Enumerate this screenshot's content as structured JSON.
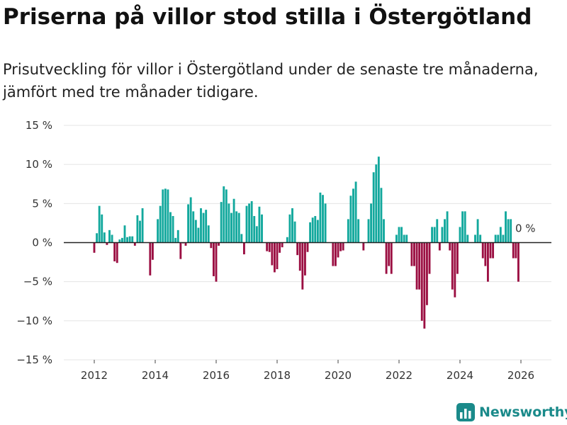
{
  "chart_data": {
    "type": "bar",
    "title": "Priserna på villor stod stilla i Östergötland",
    "subtitle": "Prisutveckling för villor i Östergötland under de senaste tre månaderna, jämfört med tre månader tidigare.",
    "ylabel": "",
    "xlabel": "",
    "ylim": [
      -15,
      15
    ],
    "y_ticks": [
      15,
      10,
      5,
      0,
      -5,
      -10,
      -15
    ],
    "y_tick_labels": [
      "15 %",
      "10 %",
      "5 %",
      "0 %",
      "−5 %",
      "−10 %",
      "−15 %"
    ],
    "x_ticks": [
      2012,
      2014,
      2016,
      2018,
      2020,
      2022,
      2024,
      2026
    ],
    "x_tick_labels": [
      "2012",
      "2014",
      "2016",
      "2018",
      "2020",
      "2022",
      "2024",
      "2026"
    ],
    "x_range": [
      2011,
      2027
    ],
    "start": {
      "year": 2012,
      "month": 1
    },
    "values": [
      -1.3,
      1.2,
      4.7,
      3.6,
      1.3,
      -0.3,
      1.6,
      1.0,
      -2.4,
      -2.6,
      0.4,
      0.6,
      2.2,
      0.7,
      0.8,
      0.8,
      -0.4,
      3.5,
      2.8,
      4.4,
      0.0,
      0.0,
      -4.2,
      -2.2,
      0.0,
      3.0,
      4.7,
      6.8,
      6.9,
      6.8,
      3.9,
      3.4,
      0.6,
      1.6,
      -2.1,
      -0.1,
      -0.4,
      4.9,
      5.8,
      4.0,
      2.9,
      1.9,
      4.4,
      3.8,
      4.2,
      2.2,
      -0.7,
      -4.3,
      -5.0,
      -0.4,
      5.2,
      7.2,
      6.8,
      5.0,
      3.8,
      5.6,
      4.0,
      3.8,
      1.1,
      -1.5,
      4.7,
      5.0,
      5.3,
      3.4,
      2.1,
      4.6,
      3.6,
      0.0,
      -1.1,
      -1.2,
      -2.9,
      -3.8,
      -3.4,
      -1.3,
      -0.6,
      0.0,
      0.7,
      3.6,
      4.4,
      2.7,
      -1.6,
      -3.6,
      -6.0,
      -4.2,
      -1.2,
      2.6,
      3.2,
      3.4,
      2.9,
      6.4,
      6.1,
      5.0,
      0.0,
      0.0,
      -3.0,
      -3.0,
      -1.9,
      -1.1,
      -1.0,
      0.0,
      3.0,
      6.0,
      6.9,
      7.8,
      3.0,
      0.0,
      -1.0,
      0.0,
      3.0,
      5.0,
      9.0,
      10.0,
      11.0,
      7.0,
      3.0,
      -4.0,
      -3.0,
      -4.0,
      0.0,
      1.0,
      2.0,
      2.0,
      1.0,
      1.0,
      0.0,
      -3.0,
      -3.0,
      -6.0,
      -6.0,
      -10.0,
      -11.0,
      -8.0,
      -4.0,
      2.0,
      2.0,
      3.0,
      -1.0,
      2.0,
      3.0,
      4.0,
      -1.0,
      -6.0,
      -7.0,
      -4.0,
      2.0,
      4.0,
      4.0,
      1.0,
      0.0,
      0.0,
      1.0,
      3.0,
      1.0,
      -2.0,
      -3.0,
      -5.0,
      -2.0,
      -2.0,
      1.0,
      1.0,
      2.0,
      1.0,
      4.0,
      3.0,
      3.0,
      -2.0,
      -2.0,
      -5.0,
      0.0
    ],
    "last_value_label": "0 %",
    "colors": {
      "positive": "#12a89d",
      "negative": "#9b0f42",
      "zero_line": "#222222"
    }
  },
  "brand": {
    "name": "Newsworthy",
    "color": "#1a8a8a"
  }
}
